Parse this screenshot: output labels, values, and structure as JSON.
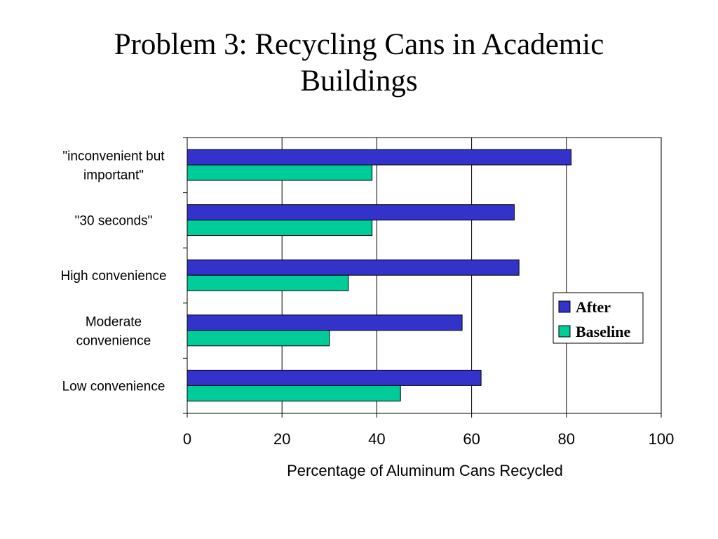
{
  "slide": {
    "title_line1": "Problem 3: Recycling Cans in Academic",
    "title_line2": "Buildings"
  },
  "chart_data": {
    "type": "bar",
    "orientation": "horizontal",
    "title": "",
    "xlabel": "Percentage of Aluminum Cans Recycled",
    "ylabel": "",
    "xlim": [
      0,
      100
    ],
    "xticks": [
      0,
      20,
      40,
      60,
      80,
      100
    ],
    "grid": "vertical major gridlines",
    "legend_position": "right",
    "categories": [
      [
        "\"inconvenient but",
        "important\""
      ],
      [
        "\"30 seconds\""
      ],
      [
        "High convenience"
      ],
      [
        "Moderate",
        "convenience"
      ],
      [
        "Low convenience"
      ]
    ],
    "series": [
      {
        "name": "After",
        "color": "#3333cc",
        "values": [
          81,
          69,
          70,
          58,
          62
        ]
      },
      {
        "name": "Baseline",
        "color": "#00cc99",
        "values": [
          39,
          39,
          34,
          30,
          45
        ]
      }
    ]
  }
}
